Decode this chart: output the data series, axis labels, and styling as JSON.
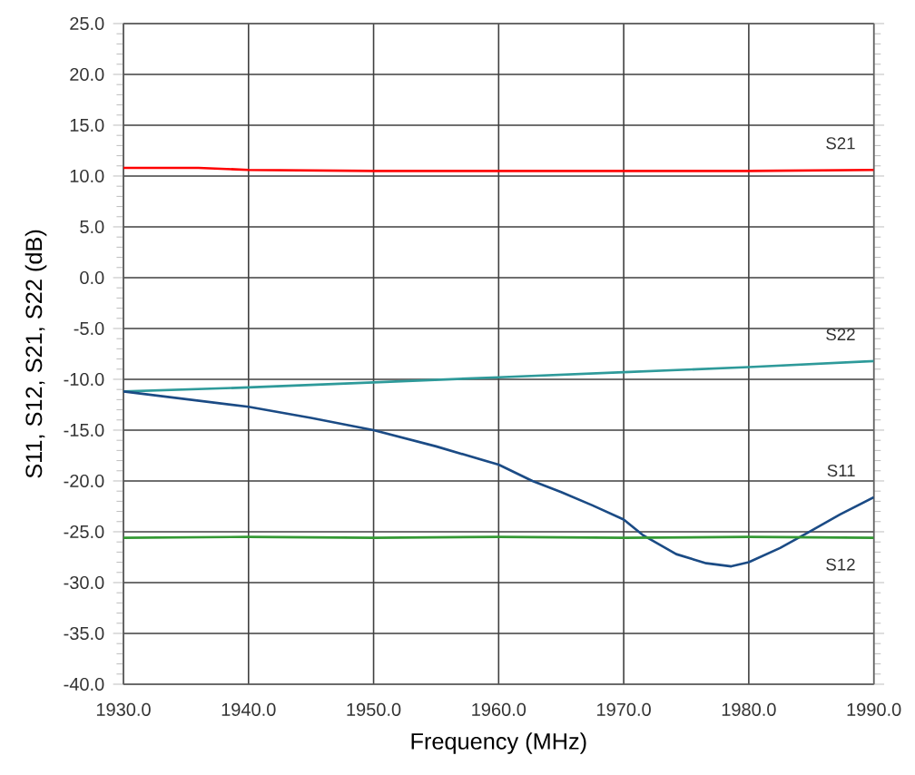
{
  "chart_data": {
    "type": "line",
    "xlabel": "Frequency (MHz)",
    "ylabel": "S11, S12, S21, S22 (dB)",
    "grid": true,
    "xlim": [
      1930,
      1990
    ],
    "ylim": [
      -40,
      25
    ],
    "xticks": [
      {
        "value": 1930,
        "label": "1930.0"
      },
      {
        "value": 1940,
        "label": "1940.0"
      },
      {
        "value": 1950,
        "label": "1950.0"
      },
      {
        "value": 1960,
        "label": "1960.0"
      },
      {
        "value": 1970,
        "label": "1970.0"
      },
      {
        "value": 1980,
        "label": "1980.0"
      },
      {
        "value": 1990,
        "label": "1990.0"
      }
    ],
    "yticks": [
      {
        "value": -40,
        "label": "-40.0"
      },
      {
        "value": -35,
        "label": "-35.0"
      },
      {
        "value": -30,
        "label": "-30.0"
      },
      {
        "value": -25,
        "label": "-25.0"
      },
      {
        "value": -20,
        "label": "-20.0"
      },
      {
        "value": -15,
        "label": "-15.0"
      },
      {
        "value": -10,
        "label": "-10.0"
      },
      {
        "value": -5,
        "label": "-5.0"
      },
      {
        "value": 0,
        "label": "0.0"
      },
      {
        "value": 5,
        "label": "5.0"
      },
      {
        "value": 10,
        "label": "10.0"
      },
      {
        "value": 15,
        "label": "15.0"
      },
      {
        "value": 20,
        "label": "20.0"
      },
      {
        "value": 25,
        "label": "25.0"
      }
    ],
    "series": [
      {
        "name": "S21",
        "color": "#ff0000",
        "x": [
          1930,
          1936,
          1940,
          1950,
          1960,
          1970,
          1980,
          1990
        ],
        "values": [
          10.8,
          10.8,
          10.6,
          10.5,
          10.5,
          10.5,
          10.5,
          10.6
        ]
      },
      {
        "name": "S22",
        "color": "#2e9a9a",
        "x": [
          1930,
          1940,
          1950,
          1960,
          1970,
          1980,
          1990
        ],
        "values": [
          -11.2,
          -10.8,
          -10.3,
          -9.8,
          -9.3,
          -8.8,
          -8.2
        ]
      },
      {
        "name": "S11",
        "color": "#1b4b85",
        "x": [
          1930,
          1940,
          1945,
          1950,
          1955,
          1960,
          1962.7,
          1965,
          1967.5,
          1970,
          1971.5,
          1974.2,
          1976.6,
          1978.6,
          1980,
          1982.5,
          1984.7,
          1987.3,
          1990
        ],
        "values": [
          -11.2,
          -12.7,
          -13.8,
          -15,
          -16.6,
          -18.4,
          -20,
          -21.1,
          -22.4,
          -23.8,
          -25.3,
          -27.2,
          -28.1,
          -28.4,
          -28,
          -26.6,
          -25.1,
          -23.3,
          -21.6
        ]
      },
      {
        "name": "S12",
        "color": "#339933",
        "x": [
          1930,
          1940,
          1950,
          1960,
          1970,
          1980,
          1990
        ],
        "values": [
          -25.6,
          -25.5,
          -25.6,
          -25.5,
          -25.6,
          -25.5,
          -25.6
        ]
      }
    ]
  }
}
